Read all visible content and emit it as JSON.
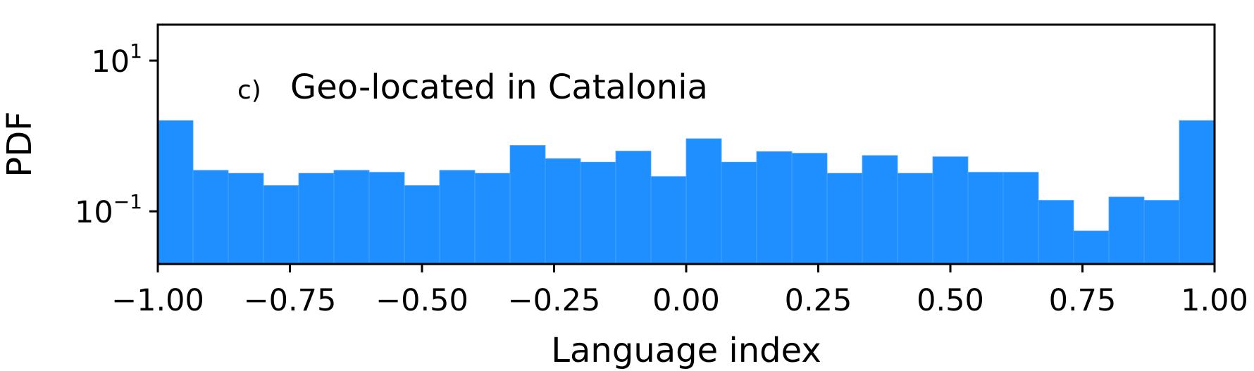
{
  "chart_data": {
    "type": "bar",
    "title": "Geo-located in Catalonia",
    "panel_label": "c)",
    "xlabel": "Language index",
    "ylabel": "PDF",
    "xlim": [
      -1.0,
      1.0
    ],
    "ylim": [
      0.02,
      30
    ],
    "yscale": "log",
    "grid": false,
    "bar_color": "#1f8fff",
    "x_ticks": [
      {
        "value": -1.0,
        "label": "−1.00"
      },
      {
        "value": -0.75,
        "label": "−0.75"
      },
      {
        "value": -0.5,
        "label": "−0.50"
      },
      {
        "value": -0.25,
        "label": "−0.25"
      },
      {
        "value": 0.0,
        "label": "0.00"
      },
      {
        "value": 0.25,
        "label": "0.25"
      },
      {
        "value": 0.5,
        "label": "0.50"
      },
      {
        "value": 0.75,
        "label": "0.75"
      },
      {
        "value": 1.0,
        "label": "1.00"
      }
    ],
    "y_ticks": [
      {
        "value": 10,
        "base": "10",
        "exp": "1"
      },
      {
        "value": 0.1,
        "base": "10",
        "exp": "−1"
      }
    ],
    "bin_edges": [
      -1.0,
      -0.9333,
      -0.8667,
      -0.8,
      -0.7333,
      -0.6667,
      -0.6,
      -0.5333,
      -0.4667,
      -0.4,
      -0.3333,
      -0.2667,
      -0.2,
      -0.1333,
      -0.0667,
      0.0,
      0.0667,
      0.1333,
      0.2,
      0.2667,
      0.3333,
      0.4,
      0.4667,
      0.5333,
      0.6,
      0.6667,
      0.7333,
      0.8,
      0.8667,
      0.9333,
      1.0
    ],
    "values": [
      1.6,
      0.35,
      0.32,
      0.22,
      0.32,
      0.35,
      0.33,
      0.22,
      0.35,
      0.32,
      0.75,
      0.5,
      0.45,
      0.63,
      0.29,
      0.92,
      0.45,
      0.62,
      0.59,
      0.32,
      0.55,
      0.32,
      0.53,
      0.33,
      0.33,
      0.14,
      0.055,
      0.155,
      0.14,
      1.6
    ]
  }
}
